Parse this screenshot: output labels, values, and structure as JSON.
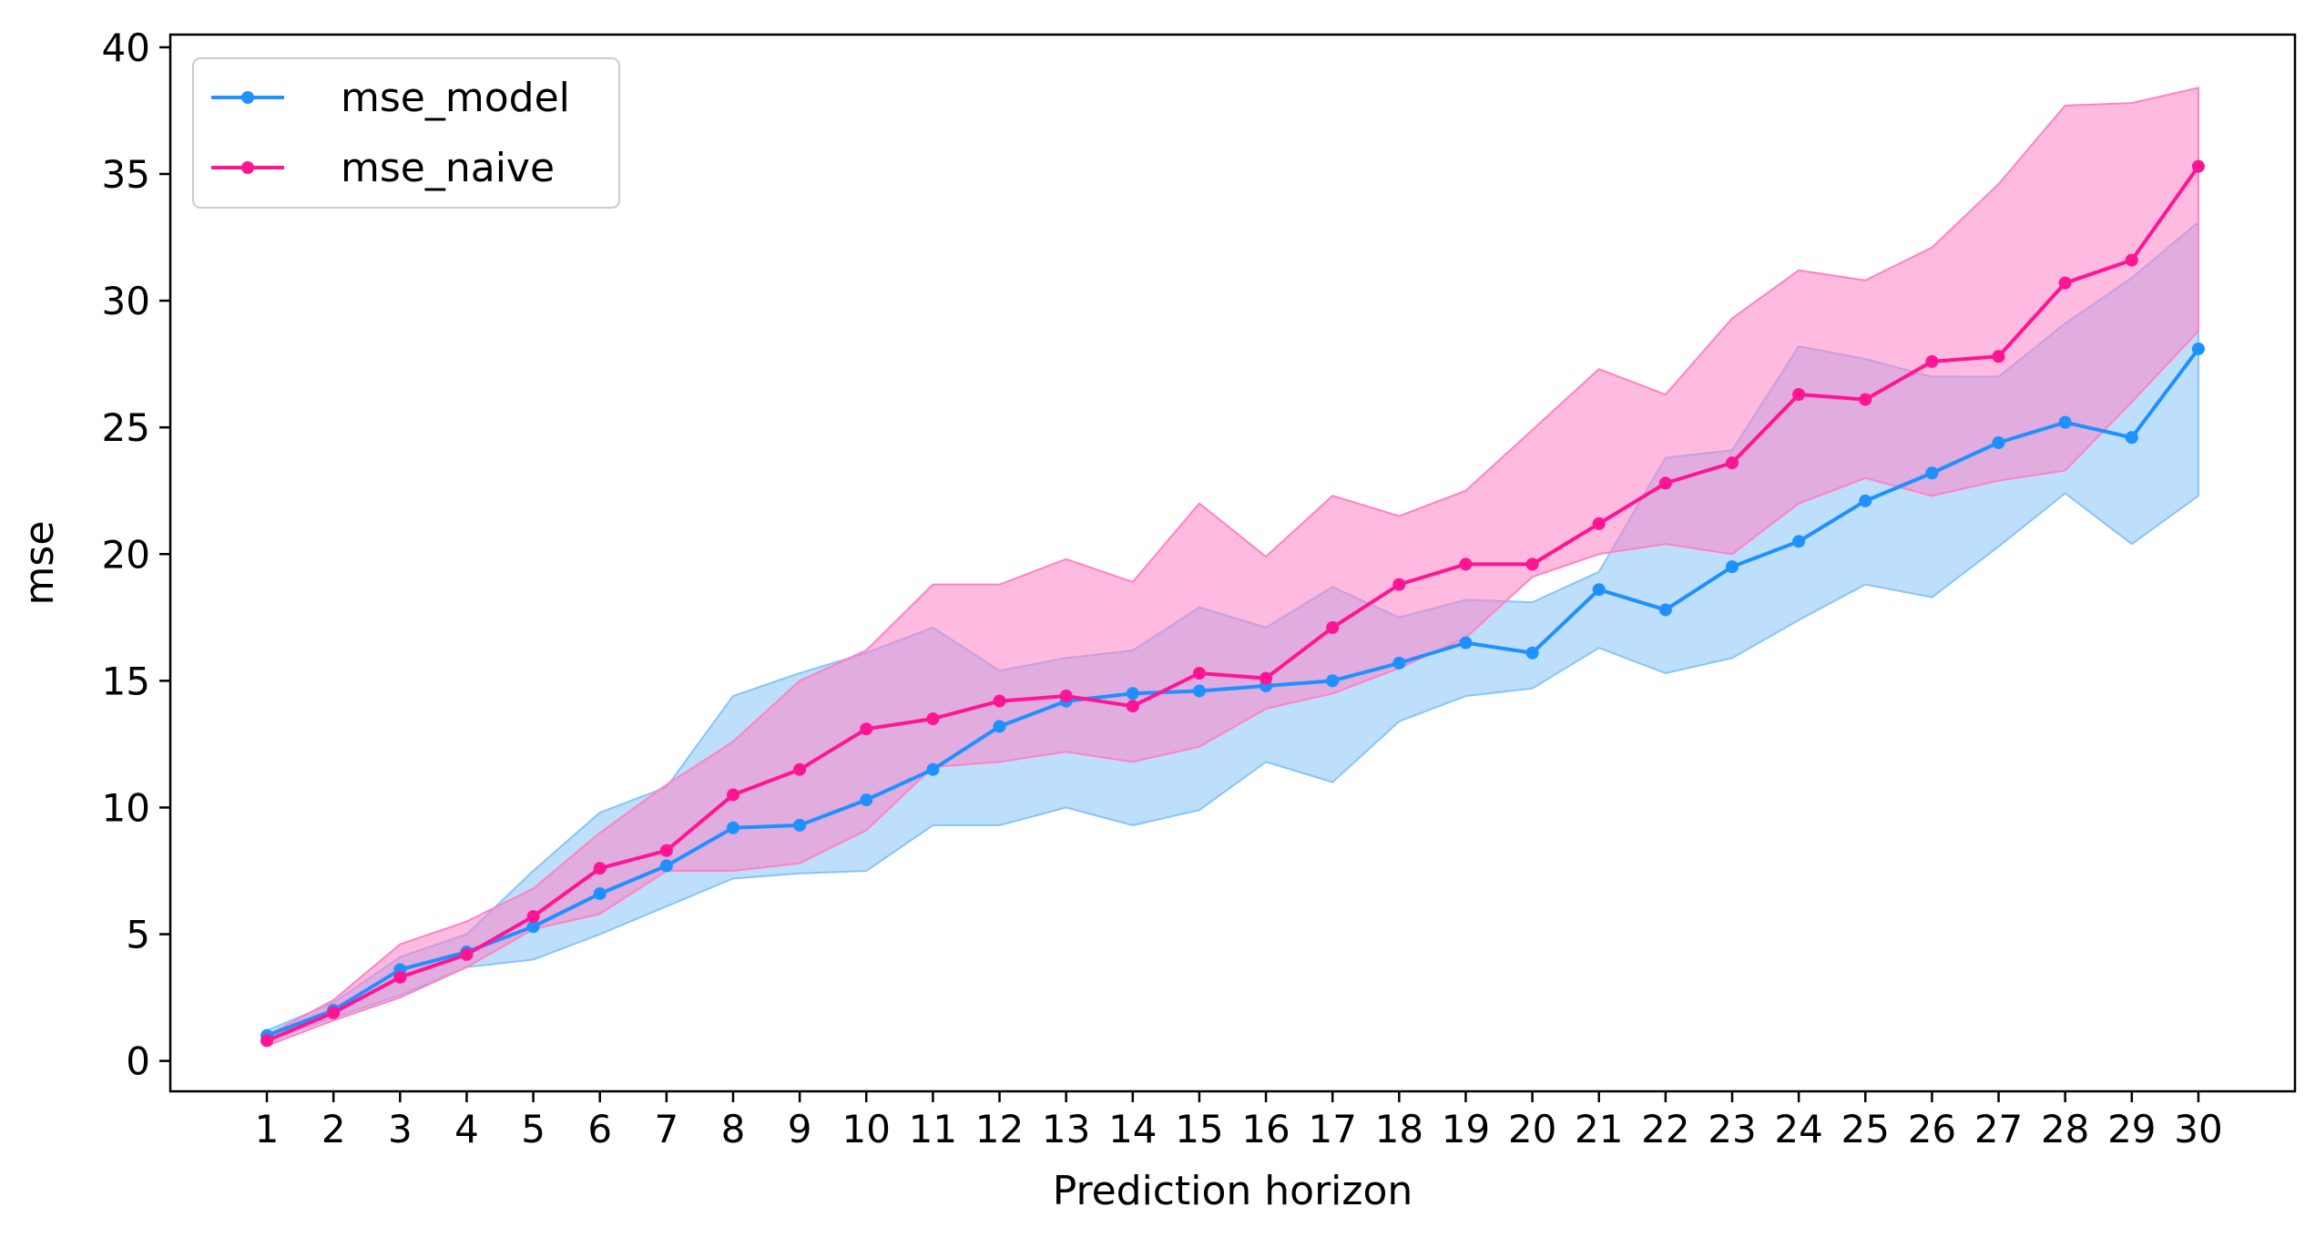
{
  "chart_data": {
    "type": "line",
    "title": "",
    "xlabel": "Prediction horizon",
    "ylabel": "mse",
    "x": [
      1,
      2,
      3,
      4,
      5,
      6,
      7,
      8,
      9,
      10,
      11,
      12,
      13,
      14,
      15,
      16,
      17,
      18,
      19,
      20,
      21,
      22,
      23,
      24,
      25,
      26,
      27,
      28,
      29,
      30
    ],
    "xlim": [
      -0.45,
      31.45
    ],
    "ylim": [
      -1.2,
      40.5
    ],
    "yticks": [
      0,
      5,
      10,
      15,
      20,
      25,
      30,
      35,
      40
    ],
    "grid": false,
    "legend_position": "upper left",
    "series": [
      {
        "name": "mse_model",
        "color": "#1e90ff",
        "band_color": "#87c4fa",
        "values": [
          1.0,
          2.0,
          3.6,
          4.3,
          5.3,
          6.6,
          7.7,
          9.2,
          9.3,
          10.3,
          11.5,
          13.2,
          14.2,
          14.5,
          14.6,
          14.8,
          15.0,
          15.7,
          16.5,
          16.1,
          18.6,
          17.8,
          19.5,
          20.5,
          22.1,
          23.2,
          24.4,
          25.2,
          24.6,
          28.1
        ],
        "band_upper": [
          1.2,
          2.3,
          4.1,
          5.0,
          7.5,
          9.8,
          10.8,
          14.4,
          15.3,
          16.1,
          17.1,
          15.4,
          15.9,
          16.2,
          17.9,
          17.1,
          18.7,
          17.5,
          18.2,
          18.1,
          19.3,
          23.8,
          24.1,
          28.2,
          27.7,
          27.0,
          27.0,
          29.1,
          30.9,
          33.1
        ],
        "band_lower": [
          0.8,
          1.7,
          2.6,
          3.7,
          4.0,
          5.0,
          6.1,
          7.2,
          7.4,
          7.5,
          9.3,
          9.3,
          10.0,
          9.3,
          9.9,
          11.8,
          11.0,
          13.4,
          14.4,
          14.7,
          16.3,
          15.3,
          15.9,
          17.4,
          18.8,
          18.3,
          20.3,
          22.4,
          20.4,
          22.3
        ]
      },
      {
        "name": "mse_naive",
        "color": "#ff1493",
        "band_color": "#ff82c4",
        "values": [
          0.8,
          1.9,
          3.3,
          4.2,
          5.7,
          7.6,
          8.3,
          10.5,
          11.5,
          13.1,
          13.5,
          14.2,
          14.4,
          14.0,
          15.3,
          15.1,
          17.1,
          18.8,
          19.6,
          19.6,
          21.2,
          22.8,
          23.6,
          26.3,
          26.1,
          27.6,
          27.8,
          30.7,
          31.6,
          35.3
        ],
        "band_upper": [
          1.0,
          2.4,
          4.6,
          5.5,
          6.8,
          9.0,
          10.9,
          12.6,
          15.0,
          16.2,
          18.8,
          18.8,
          19.8,
          18.9,
          22.0,
          19.9,
          22.3,
          21.5,
          22.5,
          24.9,
          27.3,
          26.3,
          29.3,
          31.2,
          30.8,
          32.1,
          34.6,
          37.7,
          37.8,
          38.4
        ],
        "band_lower": [
          0.6,
          1.6,
          2.5,
          3.7,
          5.2,
          5.8,
          7.5,
          7.5,
          7.8,
          9.1,
          11.6,
          11.8,
          12.2,
          11.8,
          12.4,
          13.9,
          14.5,
          15.5,
          16.7,
          19.1,
          20.0,
          20.4,
          20.0,
          22.0,
          23.0,
          22.3,
          22.9,
          23.3,
          26.0,
          28.8
        ]
      }
    ]
  }
}
